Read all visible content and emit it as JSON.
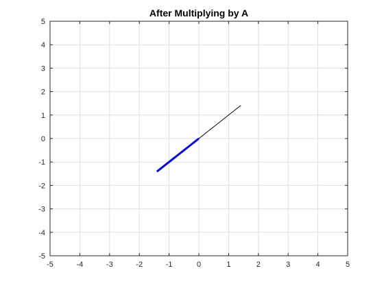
{
  "chart_data": {
    "type": "line",
    "title": "After Multiplying by A",
    "xlabel": "",
    "ylabel": "",
    "xlim": [
      -5,
      5
    ],
    "ylim": [
      -5,
      5
    ],
    "xticks": [
      -5,
      -4,
      -3,
      -2,
      -1,
      0,
      1,
      2,
      3,
      4,
      5
    ],
    "yticks": [
      -5,
      -4,
      -3,
      -2,
      -1,
      0,
      1,
      2,
      3,
      4,
      5
    ],
    "grid": true,
    "series": [
      {
        "x": [
          0,
          1.41
        ],
        "y": [
          0,
          1.41
        ],
        "color": "#000000",
        "style": "thin"
      },
      {
        "x": [
          0,
          -1.41
        ],
        "y": [
          0,
          -1.41
        ],
        "color": "#0000ff",
        "style": "thick"
      }
    ]
  }
}
